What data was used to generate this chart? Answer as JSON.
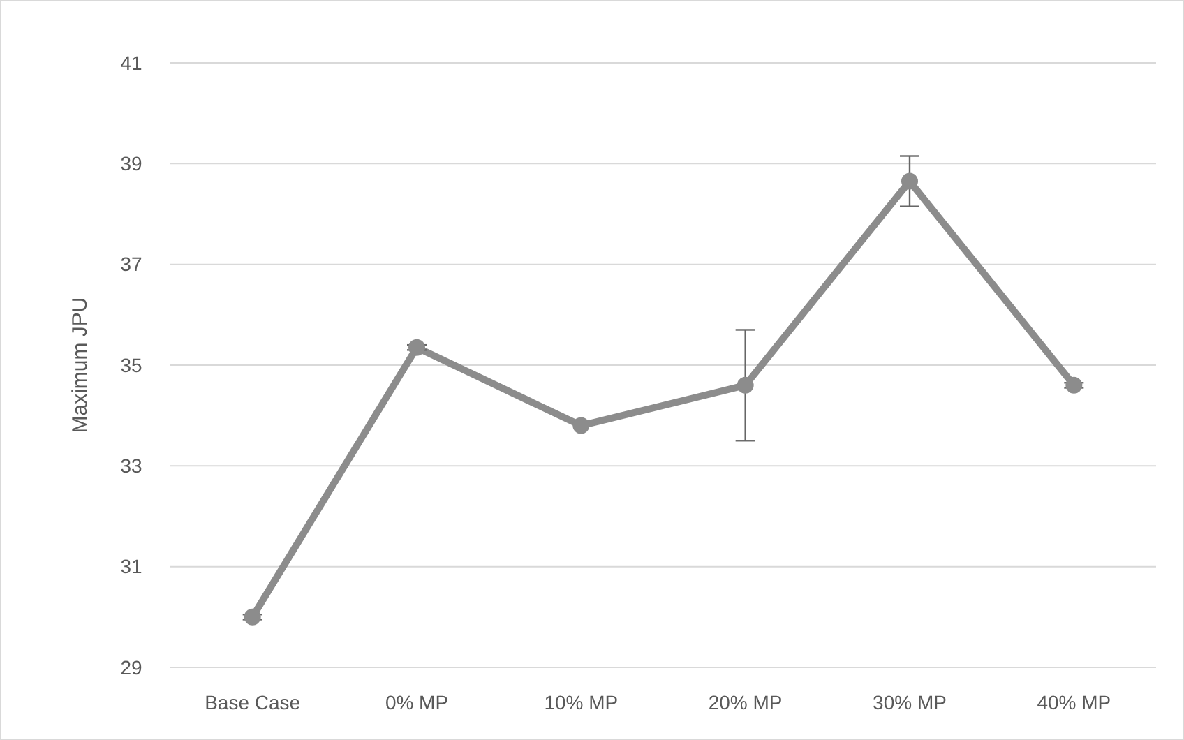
{
  "chart_data": {
    "type": "line",
    "ylabel": "Maximum JPU",
    "categories": [
      "Base Case",
      "0% MP",
      "10% MP",
      "20% MP",
      "30% MP",
      "40% MP"
    ],
    "series": [
      {
        "color": "#8c8c8c",
        "values": [
          30.0,
          35.35,
          33.8,
          34.6,
          38.65,
          34.6
        ],
        "errors": [
          0.05,
          0.05,
          null,
          1.1,
          0.5,
          0.05
        ]
      }
    ],
    "ylim": [
      29,
      41
    ],
    "yticks": [
      29,
      31,
      33,
      35,
      37,
      39,
      41
    ],
    "grid": "y",
    "marker": "circle",
    "line_style": "solid"
  }
}
